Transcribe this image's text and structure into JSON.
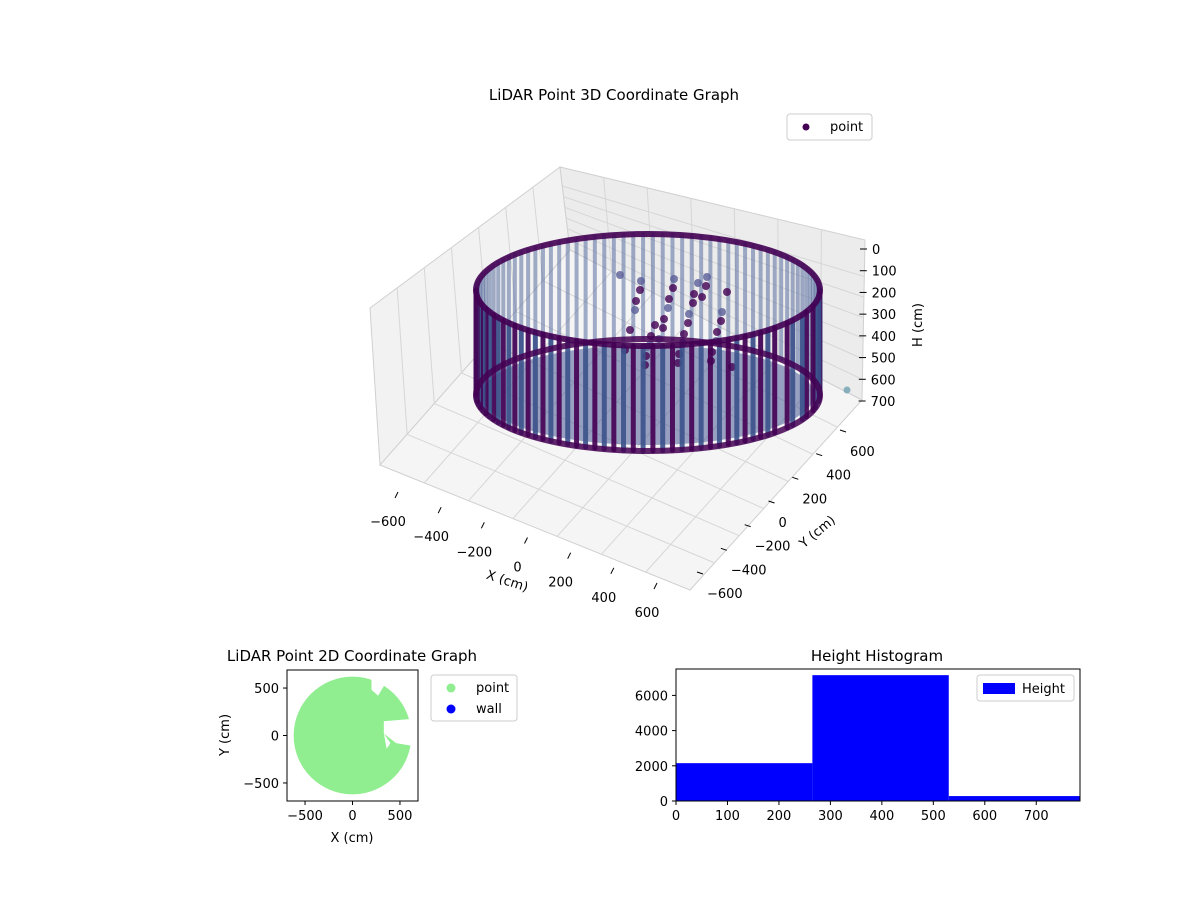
{
  "chart_data": [
    {
      "type": "scatter",
      "title": "LiDAR Point 3D Coordinate Graph",
      "xlabel": "X (cm)",
      "ylabel": "Y (cm)",
      "zlabel": "H (cm)",
      "xlim": [
        -660,
        660
      ],
      "ylim": [
        -660,
        660
      ],
      "zlim": [
        750,
        0
      ],
      "x_ticks": [
        "−600",
        "−400",
        "−200",
        "0",
        "200",
        "400",
        "600"
      ],
      "y_ticks": [
        "−600",
        "−400",
        "−200",
        "0",
        "200",
        "400",
        "600"
      ],
      "z_ticks": [
        "0",
        "100",
        "200",
        "300",
        "400",
        "500",
        "600",
        "700"
      ],
      "grid": true,
      "legend": {
        "placement": "top-right",
        "entries": [
          "point"
        ]
      },
      "series": [
        {
          "name": "point",
          "shape": "cylinder",
          "radius_cm": 560,
          "height_range_cm": [
            10,
            710
          ],
          "color": "#440154"
        }
      ],
      "colors": {
        "dark": "#440154",
        "mid": "#3b528b",
        "light": "#5a6fa0"
      }
    },
    {
      "type": "scatter",
      "title": "LiDAR Point 2D Coordinate Graph",
      "xlabel": "X (cm)",
      "ylabel": "Y (cm)",
      "xlim": [
        -690,
        690
      ],
      "ylim": [
        -690,
        690
      ],
      "x_ticks": [
        "−500",
        "0",
        "500"
      ],
      "y_ticks": [
        "−500",
        "0",
        "500"
      ],
      "legend": {
        "placement": "outside-right",
        "entries": [
          "point",
          "wall"
        ]
      },
      "series": [
        {
          "name": "point",
          "color": "#90ee90",
          "radius_cm": 620
        },
        {
          "name": "wall",
          "color": "#0000ff"
        }
      ]
    },
    {
      "type": "bar",
      "title": "Height Histogram",
      "xlim": [
        0,
        785
      ],
      "ylim": [
        0,
        7500
      ],
      "x_ticks": [
        "0",
        "100",
        "200",
        "300",
        "400",
        "500",
        "600",
        "700"
      ],
      "y_ticks": [
        "0",
        "2000",
        "4000",
        "6000"
      ],
      "legend": {
        "placement": "top-right",
        "entries": [
          "Height"
        ]
      },
      "bins": [
        {
          "start": 0,
          "end": 265,
          "count": 2150
        },
        {
          "start": 265,
          "end": 530,
          "count": 7150
        },
        {
          "start": 530,
          "end": 785,
          "count": 280
        }
      ],
      "series": [
        {
          "name": "Height",
          "color": "#0000ff"
        }
      ]
    }
  ]
}
